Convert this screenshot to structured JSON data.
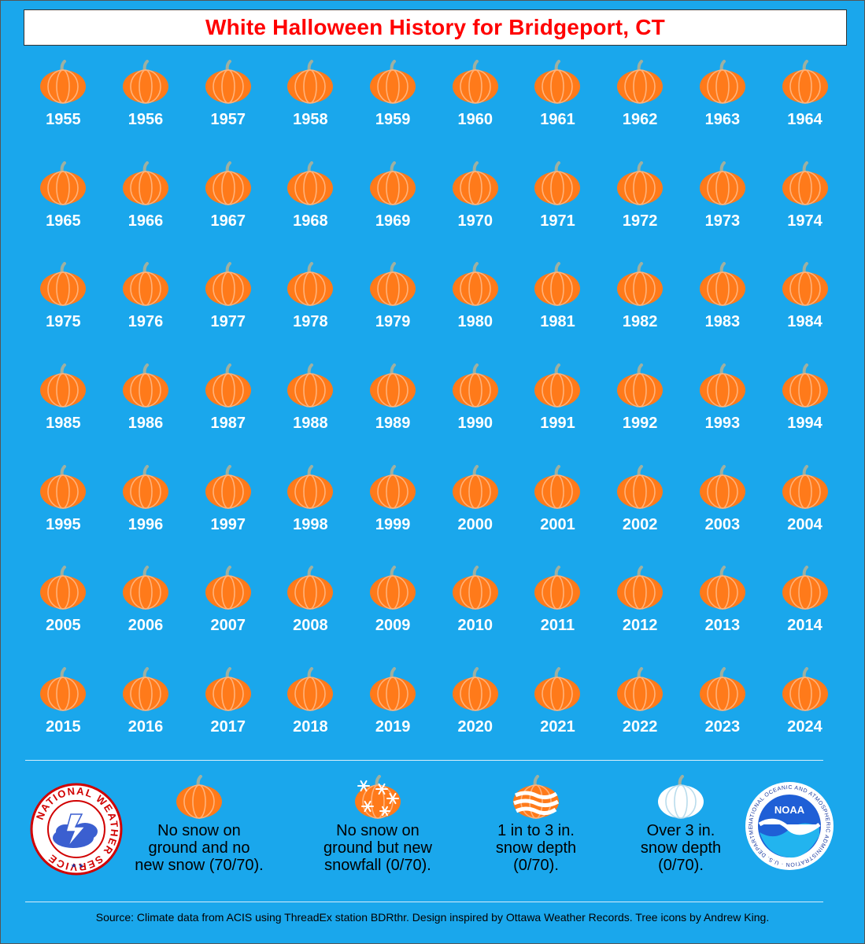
{
  "title": "White Halloween History for Bridgeport, CT",
  "years": [
    "1955",
    "1956",
    "1957",
    "1958",
    "1959",
    "1960",
    "1961",
    "1962",
    "1963",
    "1964",
    "1965",
    "1966",
    "1967",
    "1968",
    "1969",
    "1970",
    "1971",
    "1972",
    "1973",
    "1974",
    "1975",
    "1976",
    "1977",
    "1978",
    "1979",
    "1980",
    "1981",
    "1982",
    "1983",
    "1984",
    "1985",
    "1986",
    "1987",
    "1988",
    "1989",
    "1990",
    "1991",
    "1992",
    "1993",
    "1994",
    "1995",
    "1996",
    "1997",
    "1998",
    "1999",
    "2000",
    "2001",
    "2002",
    "2003",
    "2004",
    "2005",
    "2006",
    "2007",
    "2008",
    "2009",
    "2010",
    "2011",
    "2012",
    "2013",
    "2014",
    "2015",
    "2016",
    "2017",
    "2018",
    "2019",
    "2020",
    "2021",
    "2022",
    "2023",
    "2024"
  ],
  "year_icon": "orange-pumpkin-icon",
  "legend": [
    {
      "icon": "orange-pumpkin-icon",
      "label": "No snow on\nground and no\nnew snow (70/70)."
    },
    {
      "icon": "snowflake-pumpkin-icon",
      "label": "No snow on\nground but new\nsnowfall (0/70)."
    },
    {
      "icon": "striped-snow-pumpkin-icon",
      "label": "1 in to 3 in.\nsnow depth\n(0/70)."
    },
    {
      "icon": "white-pumpkin-icon",
      "label": "Over 3 in.\nsnow depth\n(0/70)."
    }
  ],
  "logos": {
    "left": "NATIONAL WEATHER SERVICE",
    "right_center": "NOAA",
    "right_ring": "NATIONAL OCEANIC AND ATMOSPHERIC ADMINISTRATION · U.S. DEPARTMENT OF COMMERCE"
  },
  "footer": "Source: Climate data from ACIS using ThreadEx station BDRthr. Design inspired by Ottawa Weather Records. Tree icons by Andrew King.",
  "colors": {
    "background": "#1aa7ec",
    "title": "#ff0000",
    "pumpkin": "#ff7a1a",
    "pumpkin_rib": "#ffb27a",
    "stem": "#9fb0a0"
  }
}
